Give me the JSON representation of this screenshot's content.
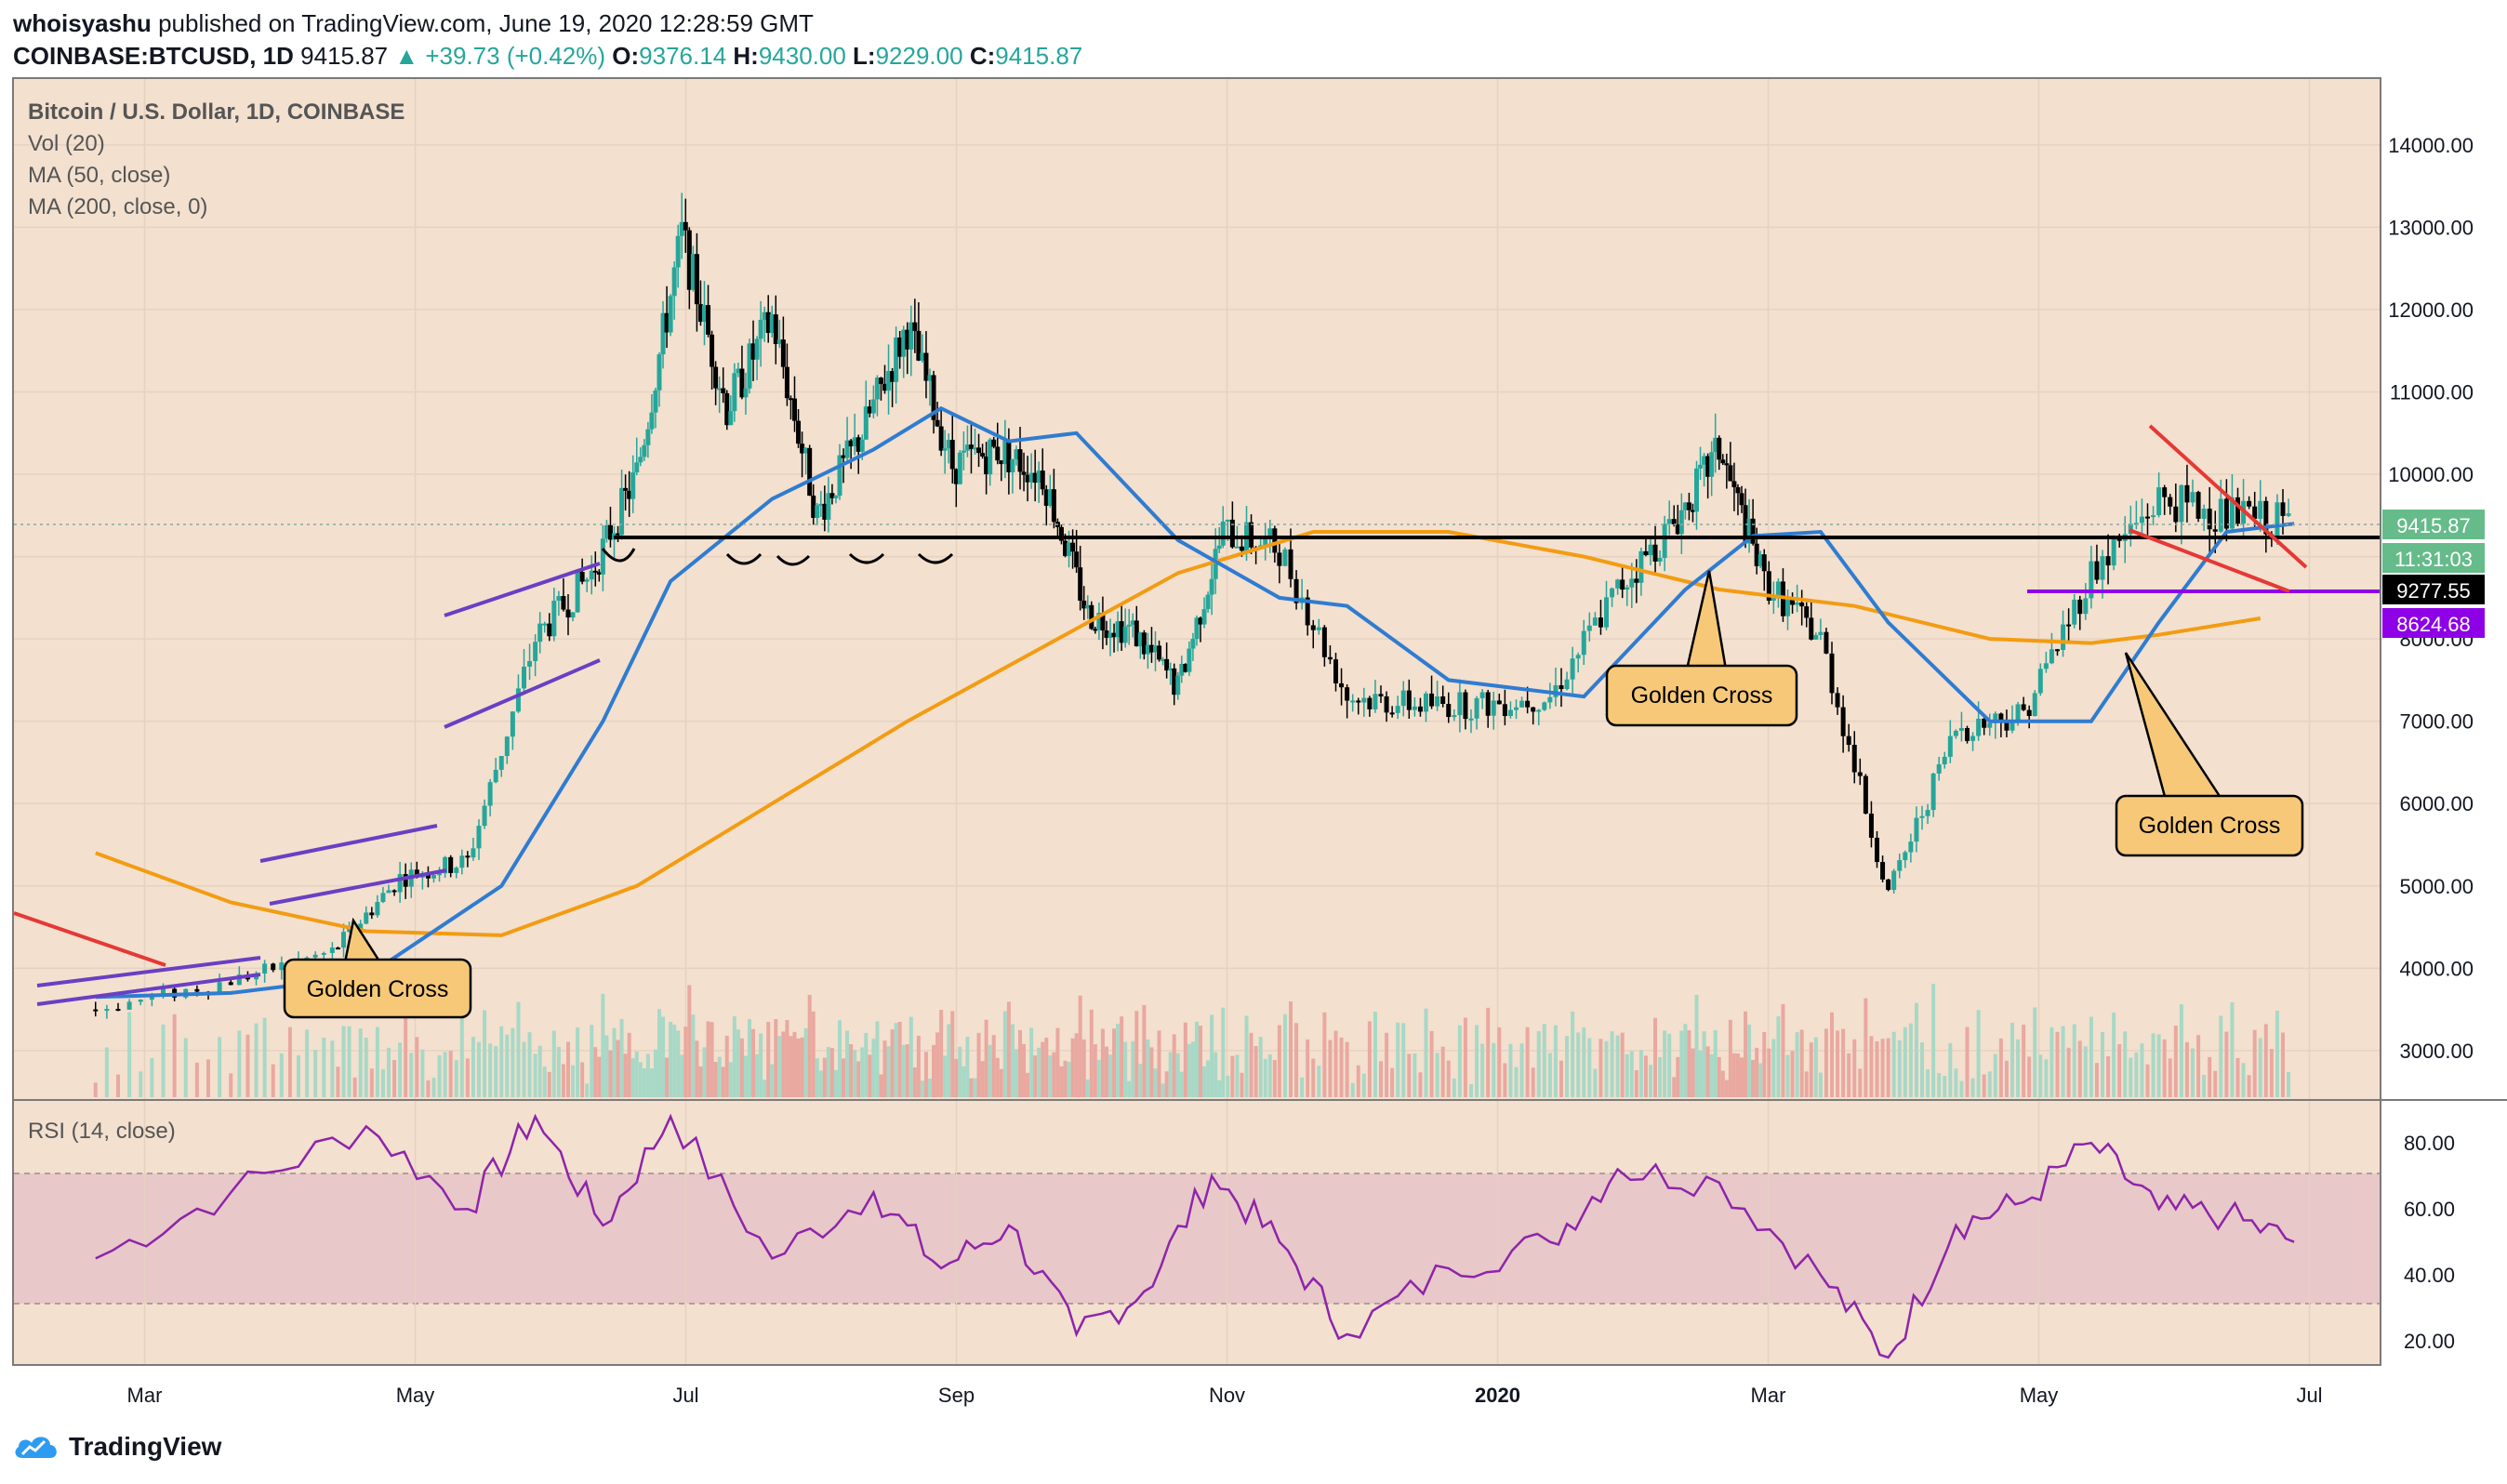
{
  "header": {
    "author": "whoisyashu",
    "published": "published on TradingView.com, June 19, 2020 12:28:59 GMT",
    "symbol": "COINBASE:BTCUSD, 1D",
    "last": "9415.87",
    "change": "+39.73 (+0.42%)",
    "o_label": "O:",
    "o_val": "9376.14",
    "h_label": "H:",
    "h_val": "9430.00",
    "l_label": "L:",
    "l_val": "9229.00",
    "c_label": "C:",
    "c_val": "9415.87"
  },
  "legend": {
    "title": "Bitcoin / U.S. Dollar, 1D, COINBASE",
    "vol": "Vol (20)",
    "ma50": "MA (50, close)",
    "ma200": "MA (200, close, 0)",
    "rsi": "RSI (14, close)"
  },
  "price_tags": {
    "last": "9415.87",
    "countdown": "11:31:03",
    "support": "9277.55",
    "purple": "8624.68"
  },
  "annotations": [
    {
      "text": "Golden Cross"
    },
    {
      "text": "Golden Cross"
    },
    {
      "text": "Golden Cross"
    }
  ],
  "footer": {
    "brand": "TradingView"
  },
  "colors": {
    "background": "#f3e0cf",
    "rsi_band": "#e8c8c8",
    "ma50": "#2f7cd1",
    "ma200": "#f39c12",
    "rsi_line": "#8e24aa",
    "trendline_red": "#e53935",
    "channel_purple": "#6a3fc4",
    "support_line": "#000000",
    "up_candle": "#26a69a",
    "down_candle": "#000000",
    "callout_fill": "#f6c878",
    "last_tag": "#66bb8a",
    "purple_tag": "#8e00e6"
  },
  "chart_data": [
    {
      "type": "candlestick",
      "title": "Bitcoin / U.S. Dollar, 1D, COINBASE",
      "x_ticks": [
        "Mar",
        "May",
        "Jul",
        "Sep",
        "Nov",
        "2020",
        "Mar",
        "May",
        "Jul"
      ],
      "y_ticks": [
        "3000.00",
        "4000.00",
        "5000.00",
        "6000.00",
        "7000.00",
        "8000.00",
        "9000.00",
        "10000.00",
        "11000.00",
        "12000.00",
        "13000.00",
        "14000.00"
      ],
      "ylim": [
        2400,
        14800
      ],
      "grid": true,
      "series": [
        {
          "name": "BTCUSD",
          "points": [
            [
              "Feb 2019",
              3500
            ],
            [
              "Mar 2019",
              3850
            ],
            [
              "Apr 2019",
              4200
            ],
            [
              "Apr 2019",
              5100
            ],
            [
              "May 2019",
              5300
            ],
            [
              "May 2019",
              8000
            ],
            [
              "Jun 2019",
              8800
            ],
            [
              "Jun 2019",
              10000
            ],
            [
              "Jun 2019",
              12900
            ],
            [
              "Jul 2019",
              10800
            ],
            [
              "Jul 2019",
              11900
            ],
            [
              "Jul 2019",
              9500
            ],
            [
              "Aug 2019",
              10500
            ],
            [
              "Aug 2019",
              11800
            ],
            [
              "Aug 2019",
              10100
            ],
            [
              "Sep 2019",
              10300
            ],
            [
              "Sep 2019",
              10000
            ],
            [
              "Sep 2019",
              8300
            ],
            [
              "Oct 2019",
              8100
            ],
            [
              "Oct 2019",
              7400
            ],
            [
              "Oct 2019",
              9300
            ],
            [
              "Nov 2019",
              9100
            ],
            [
              "Nov 2019",
              7300
            ],
            [
              "Dec 2019",
              7200
            ],
            [
              "Dec 2019",
              7200
            ],
            [
              "Jan 2020",
              7300
            ],
            [
              "Jan 2020",
              8600
            ],
            [
              "Feb 2020",
              9400
            ],
            [
              "Feb 2020",
              10300
            ],
            [
              "Feb 2020",
              8700
            ],
            [
              "Mar 2020",
              8000
            ],
            [
              "Mar 2020",
              4900
            ],
            [
              "Apr 2020",
              6900
            ],
            [
              "Apr 2020",
              7100
            ],
            [
              "May 2020",
              8800
            ],
            [
              "May 2020",
              9700
            ],
            [
              "Jun 2020",
              9500
            ],
            [
              "Jun 2020",
              9415.87
            ]
          ]
        },
        {
          "name": "MA (50, close)",
          "points": [
            [
              "Feb 2019",
              3650
            ],
            [
              "Mar 2019",
              3700
            ],
            [
              "Apr 2019",
              3900
            ],
            [
              "May 2019",
              5000
            ],
            [
              "Jun 2019",
              7000
            ],
            [
              "Jun 2019",
              8700
            ],
            [
              "Jul 2019",
              9700
            ],
            [
              "Aug 2019",
              10300
            ],
            [
              "Aug 2019",
              10800
            ],
            [
              "Sep 2019",
              10400
            ],
            [
              "Sep 2019",
              10500
            ],
            [
              "Oct 2019",
              9200
            ],
            [
              "Nov 2019",
              8500
            ],
            [
              "Nov 2019",
              8400
            ],
            [
              "Dec 2019",
              7500
            ],
            [
              "Jan 2020",
              7300
            ],
            [
              "Feb 2020",
              8600
            ],
            [
              "Feb 2020",
              9250
            ],
            [
              "Mar 2020",
              9300
            ],
            [
              "Mar 2020",
              8200
            ],
            [
              "Apr 2020",
              7000
            ],
            [
              "May 2020",
              7000
            ],
            [
              "May 2020",
              8200
            ],
            [
              "Jun 2020",
              9300
            ],
            [
              "Jun 2020",
              9400
            ]
          ]
        },
        {
          "name": "MA (200, close, 0)",
          "points": [
            [
              "Feb 2019",
              5400
            ],
            [
              "Mar 2019",
              4800
            ],
            [
              "Apr 2019",
              4450
            ],
            [
              "May 2019",
              4400
            ],
            [
              "Jun 2019",
              5000
            ],
            [
              "Jul 2019",
              6000
            ],
            [
              "Aug 2019",
              7000
            ],
            [
              "Sep 2019",
              7900
            ],
            [
              "Oct 2019",
              8800
            ],
            [
              "Nov 2019",
              9300
            ],
            [
              "Dec 2019",
              9300
            ],
            [
              "Jan 2020",
              9000
            ],
            [
              "Feb 2020",
              8600
            ],
            [
              "Mar 2020",
              8400
            ],
            [
              "Apr 2020",
              8000
            ],
            [
              "May 2020",
              7950
            ],
            [
              "May 2020",
              8050
            ],
            [
              "Jun 2020",
              8250
            ]
          ]
        }
      ]
    },
    {
      "type": "line",
      "title": "RSI (14, close)",
      "y_ticks": [
        "20.00",
        "40.00",
        "60.00",
        "80.00"
      ],
      "ylim": [
        13,
        93
      ],
      "bands": [
        30,
        70
      ],
      "series": [
        {
          "name": "RSI (14, close)",
          "points": [
            [
              "Feb 2019",
              45
            ],
            [
              "Mar 2019",
              65
            ],
            [
              "Apr 2019",
              85
            ],
            [
              "May 2019",
              60
            ],
            [
              "May 2019",
              88
            ],
            [
              "Jun 2019",
              55
            ],
            [
              "Jun 2019",
              88
            ],
            [
              "Jul 2019",
              45
            ],
            [
              "Aug 2019",
              65
            ],
            [
              "Aug 2019",
              42
            ],
            [
              "Sep 2019",
              55
            ],
            [
              "Sep 2019",
              22
            ],
            [
              "Oct 2019",
              35
            ],
            [
              "Oct 2019",
              70
            ],
            [
              "Nov 2019",
              50
            ],
            [
              "Nov 2019",
              22
            ],
            [
              "Dec 2019",
              42
            ],
            [
              "Jan 2020",
              50
            ],
            [
              "Jan 2020",
              72
            ],
            [
              "Feb 2020",
              68
            ],
            [
              "Mar 2020",
              40
            ],
            [
              "Mar 2020",
              15
            ],
            [
              "Apr 2020",
              55
            ],
            [
              "Apr 2020",
              62
            ],
            [
              "May 2020",
              80
            ],
            [
              "May 2020",
              60
            ],
            [
              "Jun 2020",
              58
            ],
            [
              "Jun 2020",
              50
            ]
          ]
        }
      ]
    }
  ]
}
